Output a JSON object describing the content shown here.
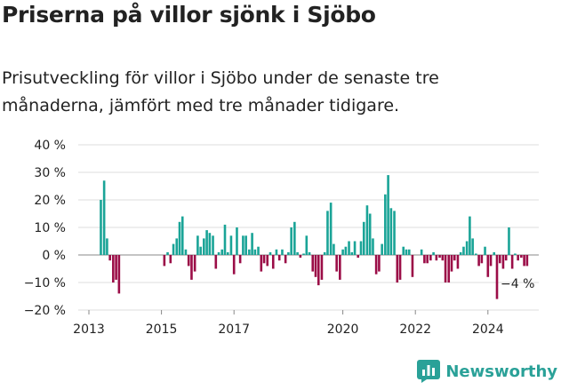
{
  "title": "Priserna på villor sjönk i Sjöbo",
  "subtitle": "Prisutveckling för villor i Sjöbo under de senaste tre månaderna, jämfört med tre månader tidigare.",
  "brand": "Newsworthy",
  "colors": {
    "positive": "#1aa497",
    "negative": "#9b0d47",
    "grid": "#dddddd",
    "text": "#222222"
  },
  "chart_data": {
    "type": "bar",
    "ylim": [
      -20,
      40
    ],
    "yticks": [
      -20,
      -10,
      0,
      10,
      20,
      30,
      40
    ],
    "ytick_labels": [
      "−20 %",
      "−10 %",
      "0 %",
      "10 %",
      "20 %",
      "30 %",
      "40 %"
    ],
    "xticks": [
      2013,
      2015,
      2017,
      2020,
      2022,
      2024
    ],
    "grid": true,
    "last_label": "−4 %",
    "values": [
      {
        "x": 2013.33,
        "y": 20
      },
      {
        "x": 2013.42,
        "y": 27
      },
      {
        "x": 2013.5,
        "y": 6
      },
      {
        "x": 2013.58,
        "y": -2
      },
      {
        "x": 2013.67,
        "y": -10
      },
      {
        "x": 2013.75,
        "y": -9
      },
      {
        "x": 2013.83,
        "y": -14
      },
      {
        "x": 2015.08,
        "y": -4
      },
      {
        "x": 2015.17,
        "y": 1
      },
      {
        "x": 2015.25,
        "y": -3
      },
      {
        "x": 2015.33,
        "y": 4
      },
      {
        "x": 2015.42,
        "y": 6
      },
      {
        "x": 2015.5,
        "y": 12
      },
      {
        "x": 2015.58,
        "y": 14
      },
      {
        "x": 2015.67,
        "y": 2
      },
      {
        "x": 2015.75,
        "y": -4
      },
      {
        "x": 2015.83,
        "y": -9
      },
      {
        "x": 2015.92,
        "y": -6
      },
      {
        "x": 2016.0,
        "y": 7
      },
      {
        "x": 2016.08,
        "y": 3
      },
      {
        "x": 2016.17,
        "y": 6
      },
      {
        "x": 2016.25,
        "y": 9
      },
      {
        "x": 2016.33,
        "y": 8
      },
      {
        "x": 2016.42,
        "y": 7
      },
      {
        "x": 2016.5,
        "y": -5
      },
      {
        "x": 2016.58,
        "y": 1
      },
      {
        "x": 2016.67,
        "y": 2
      },
      {
        "x": 2016.75,
        "y": 11
      },
      {
        "x": 2016.83,
        "y": 1
      },
      {
        "x": 2016.92,
        "y": 7
      },
      {
        "x": 2017.0,
        "y": -7
      },
      {
        "x": 2017.08,
        "y": 10
      },
      {
        "x": 2017.17,
        "y": -3
      },
      {
        "x": 2017.25,
        "y": 7
      },
      {
        "x": 2017.33,
        "y": 7
      },
      {
        "x": 2017.42,
        "y": 2
      },
      {
        "x": 2017.5,
        "y": 8
      },
      {
        "x": 2017.58,
        "y": 2
      },
      {
        "x": 2017.67,
        "y": 3
      },
      {
        "x": 2017.75,
        "y": -6
      },
      {
        "x": 2017.83,
        "y": -3
      },
      {
        "x": 2017.92,
        "y": -4
      },
      {
        "x": 2018.0,
        "y": 1
      },
      {
        "x": 2018.08,
        "y": -5
      },
      {
        "x": 2018.17,
        "y": 2
      },
      {
        "x": 2018.25,
        "y": -2
      },
      {
        "x": 2018.33,
        "y": 2
      },
      {
        "x": 2018.42,
        "y": -3
      },
      {
        "x": 2018.5,
        "y": 1
      },
      {
        "x": 2018.58,
        "y": 10
      },
      {
        "x": 2018.67,
        "y": 12
      },
      {
        "x": 2018.75,
        "y": 1
      },
      {
        "x": 2018.83,
        "y": -1
      },
      {
        "x": 2018.92,
        "y": 0.5
      },
      {
        "x": 2019.0,
        "y": 7
      },
      {
        "x": 2019.08,
        "y": 1
      },
      {
        "x": 2019.17,
        "y": -6
      },
      {
        "x": 2019.25,
        "y": -8
      },
      {
        "x": 2019.33,
        "y": -11
      },
      {
        "x": 2019.42,
        "y": -9
      },
      {
        "x": 2019.5,
        "y": 1
      },
      {
        "x": 2019.58,
        "y": 16
      },
      {
        "x": 2019.67,
        "y": 19
      },
      {
        "x": 2019.75,
        "y": 4
      },
      {
        "x": 2019.83,
        "y": -6
      },
      {
        "x": 2019.92,
        "y": -9
      },
      {
        "x": 2020.0,
        "y": 2
      },
      {
        "x": 2020.08,
        "y": 3
      },
      {
        "x": 2020.17,
        "y": 5
      },
      {
        "x": 2020.25,
        "y": 1
      },
      {
        "x": 2020.33,
        "y": 5
      },
      {
        "x": 2020.42,
        "y": -1
      },
      {
        "x": 2020.5,
        "y": 5
      },
      {
        "x": 2020.58,
        "y": 12
      },
      {
        "x": 2020.67,
        "y": 18
      },
      {
        "x": 2020.75,
        "y": 15
      },
      {
        "x": 2020.83,
        "y": 6
      },
      {
        "x": 2020.92,
        "y": -7
      },
      {
        "x": 2021.0,
        "y": -6
      },
      {
        "x": 2021.08,
        "y": 4
      },
      {
        "x": 2021.17,
        "y": 22
      },
      {
        "x": 2021.25,
        "y": 29
      },
      {
        "x": 2021.33,
        "y": 17
      },
      {
        "x": 2021.42,
        "y": 16
      },
      {
        "x": 2021.5,
        "y": -10
      },
      {
        "x": 2021.58,
        "y": -9
      },
      {
        "x": 2021.67,
        "y": 3
      },
      {
        "x": 2021.75,
        "y": 2
      },
      {
        "x": 2021.83,
        "y": 2
      },
      {
        "x": 2021.92,
        "y": -8
      },
      {
        "x": 2022.17,
        "y": 2
      },
      {
        "x": 2022.25,
        "y": -3
      },
      {
        "x": 2022.33,
        "y": -3
      },
      {
        "x": 2022.42,
        "y": -2
      },
      {
        "x": 2022.5,
        "y": 1
      },
      {
        "x": 2022.58,
        "y": -2
      },
      {
        "x": 2022.67,
        "y": -1
      },
      {
        "x": 2022.75,
        "y": -2
      },
      {
        "x": 2022.83,
        "y": -10
      },
      {
        "x": 2022.92,
        "y": -10
      },
      {
        "x": 2023.0,
        "y": -6
      },
      {
        "x": 2023.08,
        "y": -2
      },
      {
        "x": 2023.17,
        "y": -5
      },
      {
        "x": 2023.25,
        "y": 1
      },
      {
        "x": 2023.33,
        "y": 3
      },
      {
        "x": 2023.42,
        "y": 5
      },
      {
        "x": 2023.5,
        "y": 14
      },
      {
        "x": 2023.58,
        "y": 6
      },
      {
        "x": 2023.67,
        "y": 0.5
      },
      {
        "x": 2023.75,
        "y": -4
      },
      {
        "x": 2023.83,
        "y": -3
      },
      {
        "x": 2023.92,
        "y": 3
      },
      {
        "x": 2024.0,
        "y": -8
      },
      {
        "x": 2024.08,
        "y": -4
      },
      {
        "x": 2024.17,
        "y": 1
      },
      {
        "x": 2024.25,
        "y": -16
      },
      {
        "x": 2024.33,
        "y": -3
      },
      {
        "x": 2024.42,
        "y": -5
      },
      {
        "x": 2024.5,
        "y": -2
      },
      {
        "x": 2024.58,
        "y": 10
      },
      {
        "x": 2024.67,
        "y": -5
      },
      {
        "x": 2024.75,
        "y": 0.5
      },
      {
        "x": 2024.83,
        "y": -2
      },
      {
        "x": 2024.92,
        "y": -1
      },
      {
        "x": 2025.0,
        "y": -4
      },
      {
        "x": 2025.08,
        "y": -4
      }
    ]
  }
}
